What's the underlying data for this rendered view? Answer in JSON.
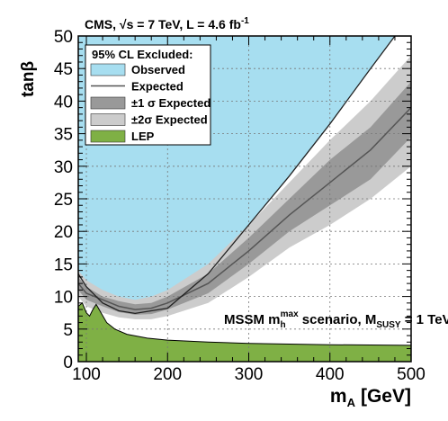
{
  "chart_data": {
    "type": "area",
    "title_text": "CMS, √s = 7 TeV, L = 4.6 fb",
    "title_superscript": "-1",
    "xlabel": "m",
    "xlabel_sub": "A",
    "xlabel_unit": "[GeV]",
    "ylabel": "tanβ",
    "xlim": [
      90,
      500
    ],
    "ylim": [
      0,
      50
    ],
    "x_ticks": [
      100,
      200,
      300,
      400,
      500
    ],
    "y_ticks": [
      0,
      5,
      10,
      15,
      20,
      25,
      30,
      35,
      40,
      45,
      50
    ],
    "grid": true,
    "legend_placement": "top-left",
    "legend": {
      "header": "95% CL Excluded:",
      "entries": [
        {
          "label": "Observed",
          "symbol": "fill",
          "color": "#a7def0"
        },
        {
          "label": "Expected",
          "symbol": "line",
          "color": "#555555"
        },
        {
          "label": "±1 σ Expected",
          "symbol": "fill",
          "color": "#999999"
        },
        {
          "label": "±2σ Expected",
          "symbol": "fill",
          "color": "#cccccc"
        },
        {
          "label": "LEP",
          "symbol": "fill",
          "color": "#7fb045"
        }
      ]
    },
    "annotation": {
      "main": "MSSM m",
      "main_sub": "h",
      "main_sup": "max",
      "rest": " scenario, M",
      "rest_sub": "SUSY",
      "tail": " = 1 TeV"
    },
    "colors": {
      "observed": "#a7def0",
      "one_sigma": "#999999",
      "two_sigma": "#cccccc",
      "lep": "#7fb045",
      "expected_line": "#555555",
      "observed_line": "#222222"
    },
    "series": {
      "observed": {
        "x": [
          90,
          100,
          120,
          140,
          160,
          180,
          200,
          250,
          300,
          350,
          400,
          450,
          480,
          500
        ],
        "y": [
          13.5,
          11.5,
          9.0,
          7.8,
          7.4,
          7.8,
          8.2,
          13.5,
          21.0,
          28.5,
          36.5,
          45.0,
          50.0,
          50.0
        ]
      },
      "expected": {
        "x": [
          90,
          100,
          120,
          140,
          160,
          180,
          200,
          250,
          300,
          350,
          400,
          450,
          500
        ],
        "y": [
          12.0,
          10.5,
          9.5,
          8.5,
          8.0,
          8.2,
          9.0,
          12.0,
          17.0,
          22.5,
          27.5,
          32.5,
          39.0
        ]
      },
      "one_sigma_upper": {
        "x": [
          90,
          100,
          120,
          140,
          160,
          180,
          200,
          250,
          300,
          350,
          400,
          450,
          500
        ],
        "y": [
          13.0,
          11.5,
          10.0,
          9.3,
          8.8,
          9.0,
          10.0,
          13.5,
          19.0,
          25.0,
          31.0,
          36.0,
          43.0
        ]
      },
      "one_sigma_lower": {
        "x": [
          90,
          100,
          120,
          140,
          160,
          180,
          200,
          250,
          300,
          350,
          400,
          450,
          500
        ],
        "y": [
          11.0,
          9.5,
          8.5,
          7.6,
          7.2,
          7.3,
          8.0,
          10.5,
          15.0,
          20.0,
          24.0,
          28.0,
          34.5
        ]
      },
      "two_sigma_upper": {
        "x": [
          90,
          100,
          120,
          140,
          160,
          180,
          200,
          250,
          300,
          350,
          400,
          450,
          500
        ],
        "y": [
          14.0,
          12.5,
          11.0,
          10.0,
          9.5,
          10.0,
          11.0,
          15.0,
          21.0,
          27.5,
          34.0,
          40.0,
          47.0
        ]
      },
      "two_sigma_lower": {
        "x": [
          90,
          100,
          120,
          140,
          160,
          180,
          200,
          250,
          300,
          350,
          400,
          450,
          500
        ],
        "y": [
          10.0,
          8.5,
          7.5,
          6.8,
          6.5,
          6.5,
          7.0,
          9.0,
          13.0,
          17.5,
          21.0,
          25.0,
          30.0
        ]
      },
      "lep": {
        "x": [
          90,
          95,
          100,
          104,
          108,
          112,
          118,
          125,
          135,
          150,
          175,
          200,
          250,
          300,
          400,
          500
        ],
        "y": [
          8.5,
          9.0,
          7.5,
          7.0,
          8.0,
          8.8,
          7.5,
          6.0,
          5.0,
          4.2,
          3.6,
          3.3,
          3.0,
          2.8,
          2.6,
          2.5
        ]
      }
    }
  }
}
